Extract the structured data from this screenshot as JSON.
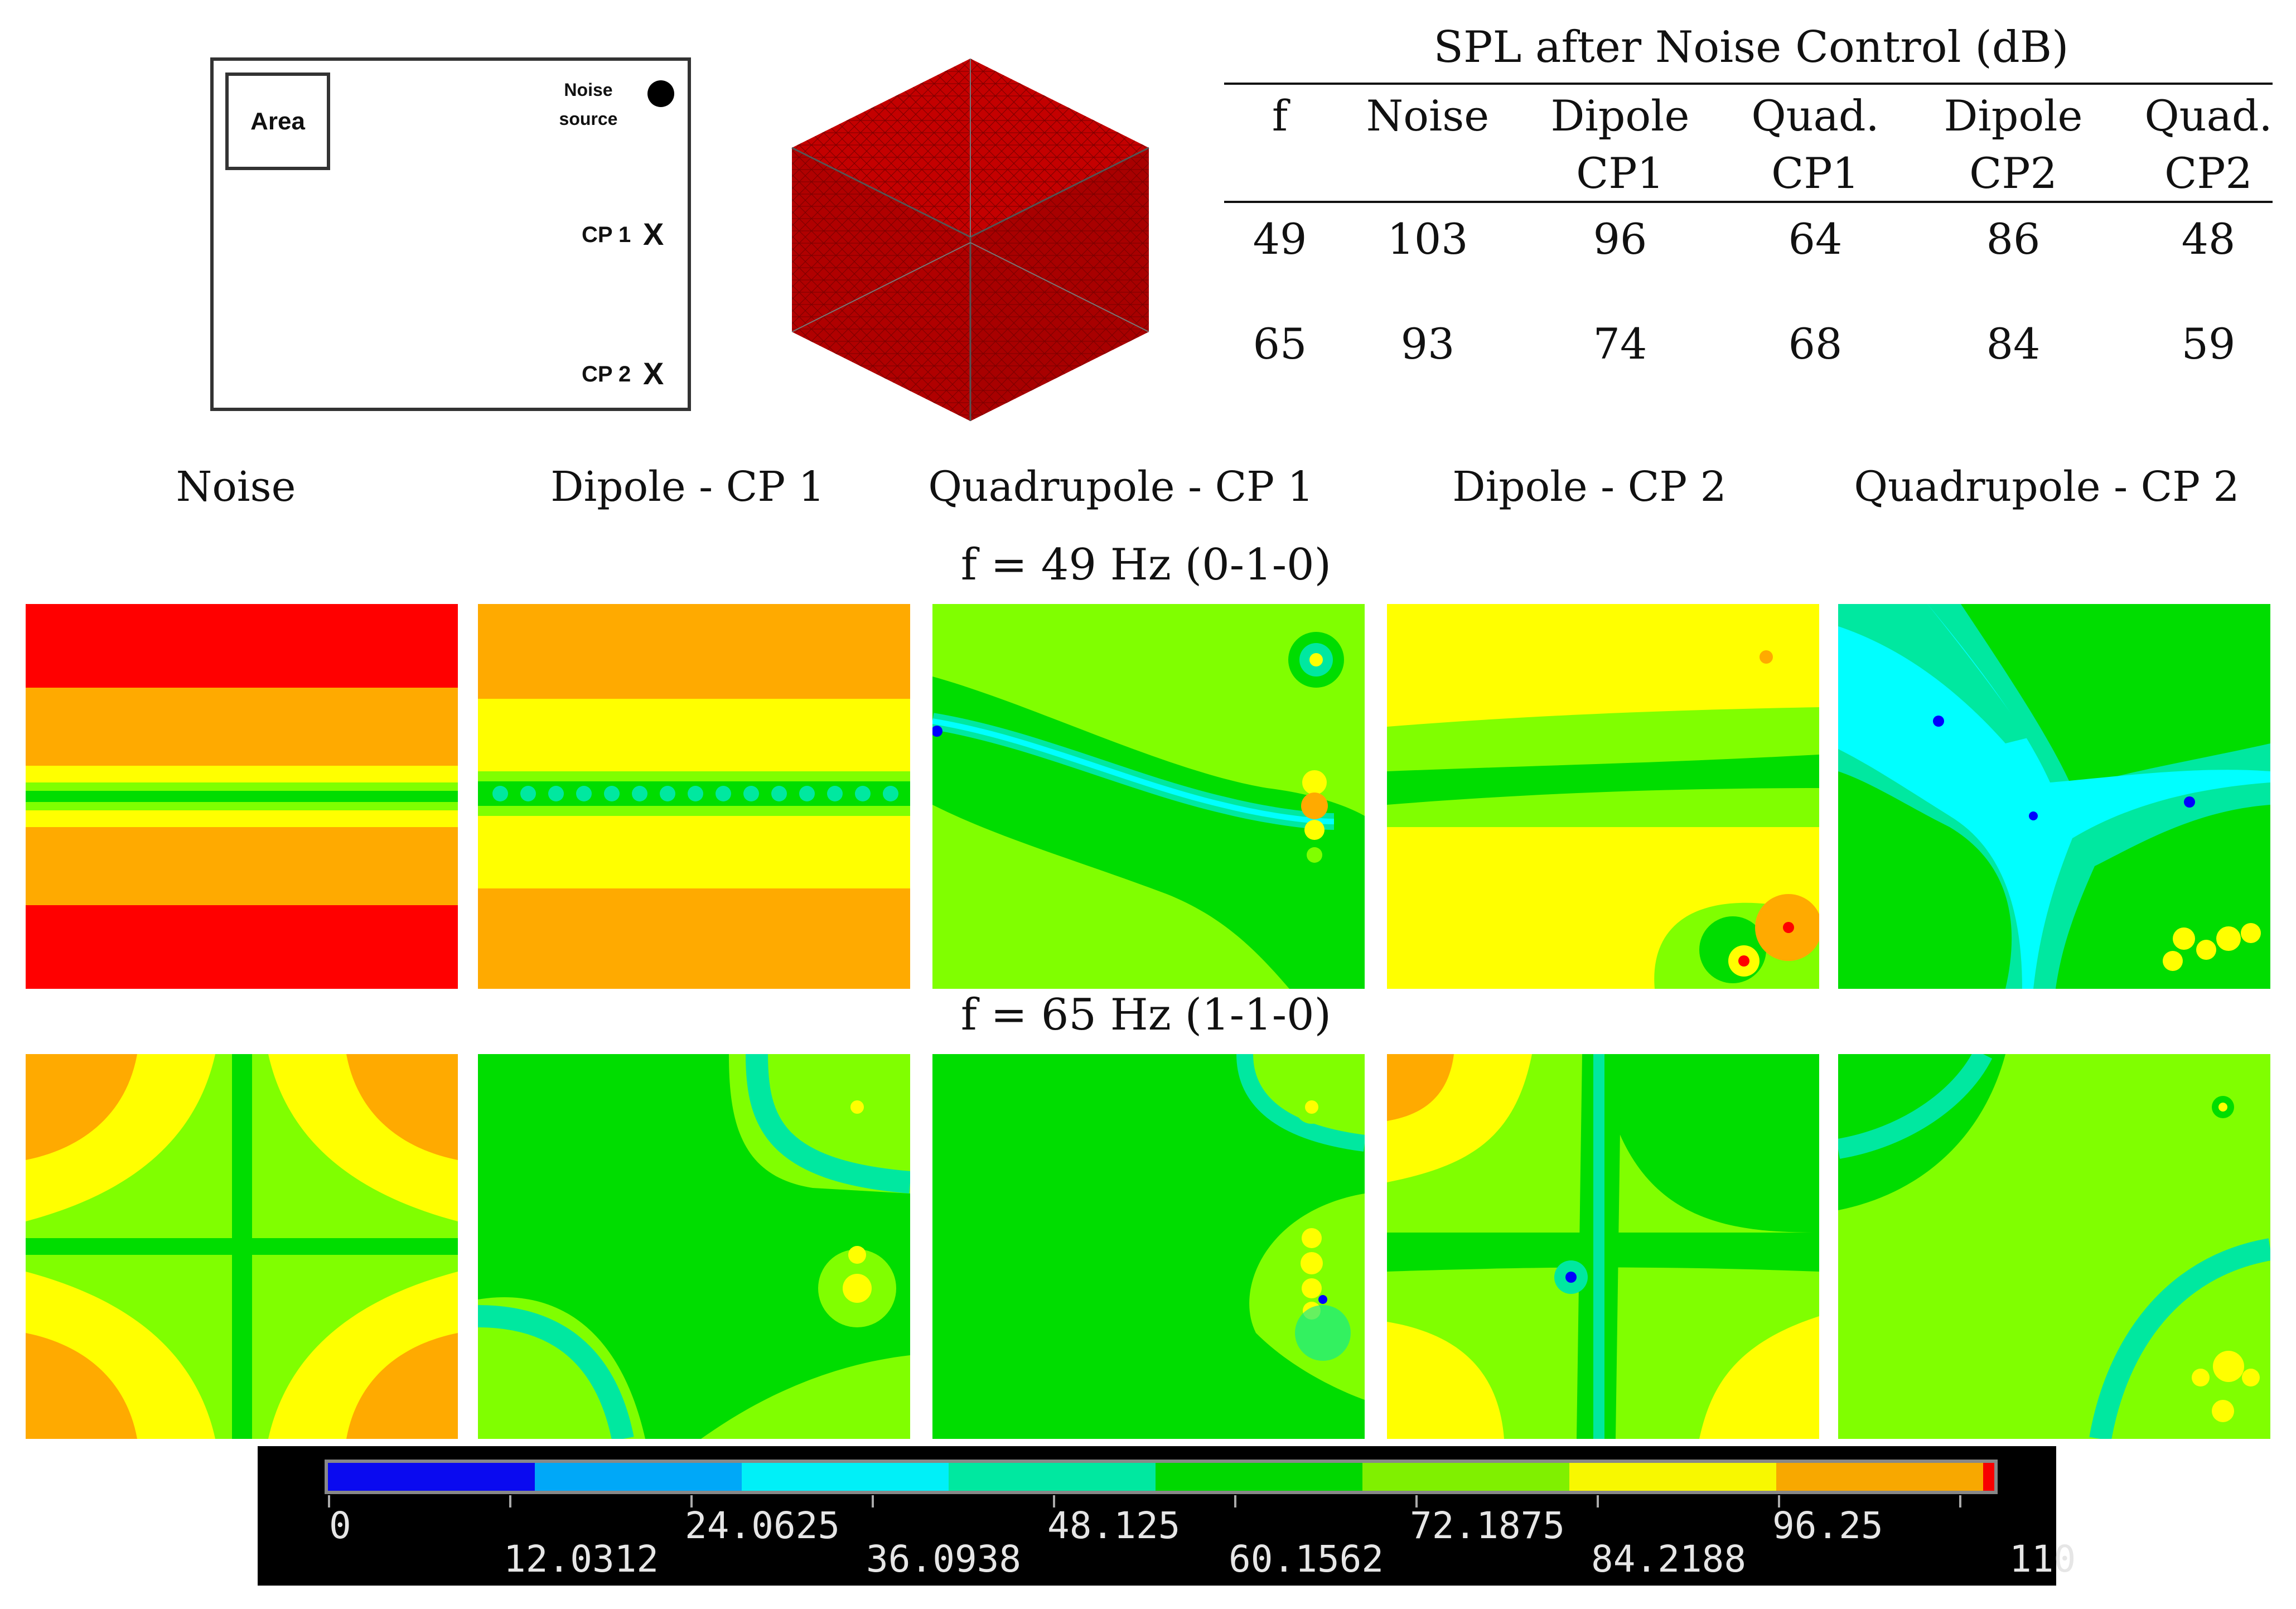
{
  "schematic": {
    "area_label": "Area",
    "noise_source_label_line1": "Noise",
    "noise_source_label_line2": "source",
    "cp1_label": "CP 1",
    "cp2_label": "CP 2",
    "marker": "X"
  },
  "table": {
    "title": "SPL after Noise Control (dB)",
    "headers": [
      [
        "f",
        ""
      ],
      [
        "Noise",
        ""
      ],
      [
        "Dipole",
        "CP1"
      ],
      [
        "Quad.",
        "CP1"
      ],
      [
        "Dipole",
        "CP2"
      ],
      [
        "Quad.",
        "CP2"
      ]
    ],
    "rows": [
      [
        "49",
        "103",
        "96",
        "64",
        "86",
        "48"
      ],
      [
        "65",
        "93",
        "74",
        "68",
        "84",
        "59"
      ]
    ]
  },
  "columns": [
    "Noise",
    "Dipole - CP 1",
    "Quadrupole - CP 1",
    "Dipole - CP 2",
    "Quadrupole - CP 2"
  ],
  "rows": [
    {
      "label": "f = 49 Hz (0-1-0)"
    },
    {
      "label": "f = 65 Hz (1-1-0)"
    }
  ],
  "colorbar": {
    "labels_top": [
      "0",
      "24.0625",
      "48.125",
      "72.1875",
      "96.25"
    ],
    "labels_bottom": [
      "12.0312",
      "36.0938",
      "60.1562",
      "84.2188",
      "110"
    ],
    "colors": [
      "#0a0af0",
      "#00a8f8",
      "#00f0f8",
      "#00e8a0",
      "#00d800",
      "#80f000",
      "#f8f800",
      "#f8a800",
      "#f80000"
    ],
    "range": [
      0,
      110
    ]
  },
  "palette": {
    "red": "#ff0000",
    "orange": "#ffaa00",
    "yellow": "#ffff00",
    "lime": "#80ff00",
    "green": "#00dd00",
    "teal": "#00e8a0",
    "cyan": "#00ffff",
    "blue": "#0000ff"
  }
}
